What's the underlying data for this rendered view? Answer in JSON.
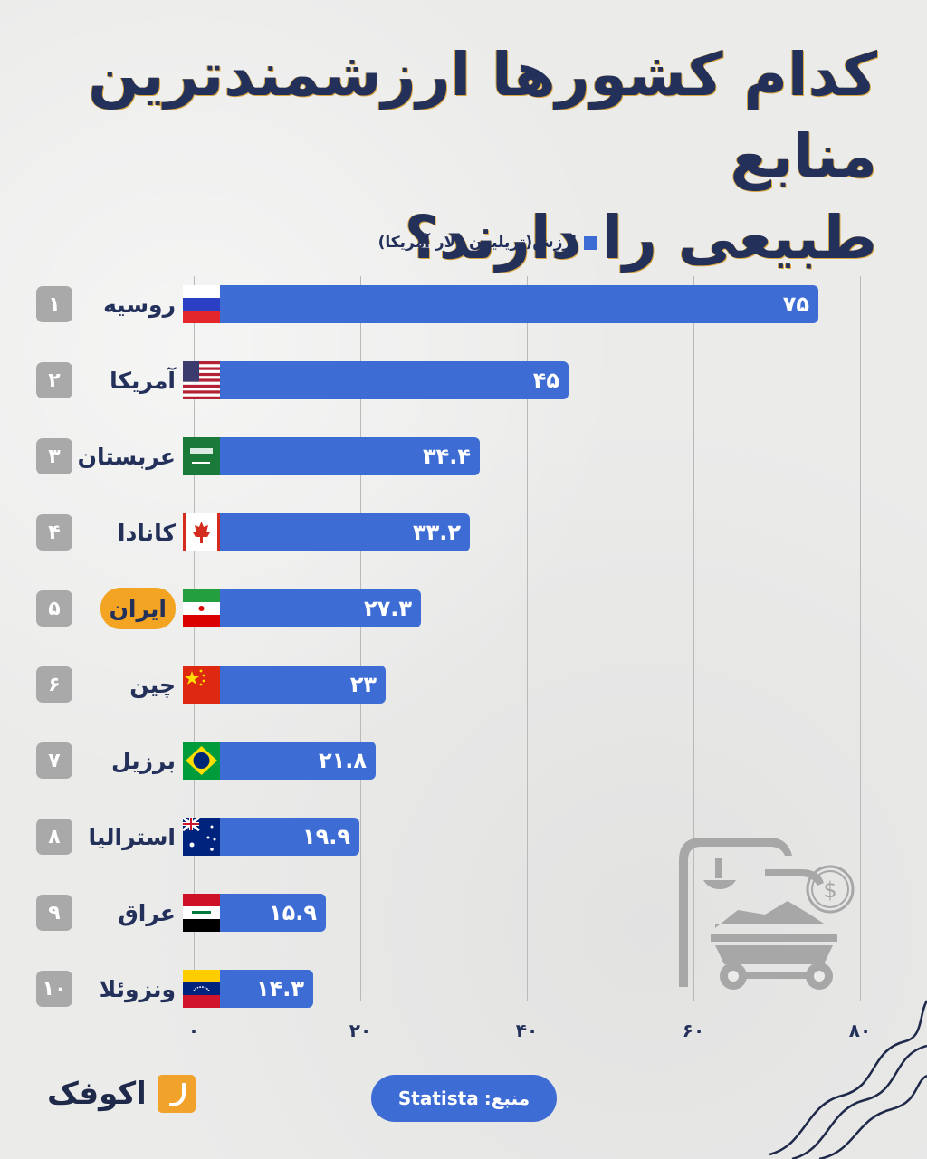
{
  "title": {
    "line1": "کدام کشورها ارزشمندترین منابع",
    "line2": "طبیعی را دارند؟"
  },
  "legend": {
    "label": "ارزش(تریلیون دلار آمریکا)",
    "color": "#3d6cd4"
  },
  "rows": [
    {
      "rank": "۱",
      "country": "روسیه",
      "value_label": "۷۵",
      "flag": "russia-flag"
    },
    {
      "rank": "۲",
      "country": "آمریکا",
      "value_label": "۴۵",
      "flag": "usa-flag"
    },
    {
      "rank": "۳",
      "country": "عربستان",
      "value_label": "۳۴.۴",
      "flag": "saudi-arabia-flag"
    },
    {
      "rank": "۴",
      "country": "کانادا",
      "value_label": "۳۳.۲",
      "flag": "canada-flag"
    },
    {
      "rank": "۵",
      "country": "ایران",
      "value_label": "۲۷.۳",
      "flag": "iran-flag",
      "highlight": true
    },
    {
      "rank": "۶",
      "country": "چین",
      "value_label": "۲۳",
      "flag": "china-flag"
    },
    {
      "rank": "۷",
      "country": "برزیل",
      "value_label": "۲۱.۸",
      "flag": "brazil-flag"
    },
    {
      "rank": "۸",
      "country": "استرالیا",
      "value_label": "۱۹.۹",
      "flag": "australia-flag"
    },
    {
      "rank": "۹",
      "country": "عراق",
      "value_label": "۱۵.۹",
      "flag": "iraq-flag"
    },
    {
      "rank": "۱۰",
      "country": "ونزوئلا",
      "value_label": "۱۴.۳",
      "flag": "venezuela-flag"
    }
  ],
  "axis": {
    "ticks": [
      "۰",
      "۲۰",
      "۴۰",
      "۶۰",
      "۸۰"
    ]
  },
  "source": {
    "label": "منبع:",
    "name": "Statista"
  },
  "logo": {
    "text": "اکوفک"
  },
  "colors": {
    "bar": "#3d6cd4",
    "title": "#23305a",
    "highlight": "#f3a423",
    "rank_badge": "#a9a9a9"
  },
  "chart_data": {
    "type": "bar",
    "orientation": "horizontal",
    "title": "کدام کشورها ارزشمندترین منابع طبیعی را دارند؟",
    "xlabel": "",
    "ylabel": "",
    "legend": [
      "ارزش(تریلیون دلار آمریکا)"
    ],
    "categories": [
      "روسیه",
      "آمریکا",
      "عربستان",
      "کانادا",
      "ایران",
      "چین",
      "برزیل",
      "استرالیا",
      "عراق",
      "ونزوئلا"
    ],
    "categories_en": [
      "Russia",
      "USA",
      "Saudi Arabia",
      "Canada",
      "Iran",
      "China",
      "Brazil",
      "Australia",
      "Iraq",
      "Venezuela"
    ],
    "values": [
      75,
      45,
      34.4,
      33.2,
      27.3,
      23,
      21.8,
      19.9,
      15.9,
      14.3
    ],
    "xlim": [
      0,
      80
    ],
    "xticks": [
      0,
      20,
      40,
      60,
      80
    ],
    "grid": true,
    "source": "Statista",
    "highlighted_category": "ایران"
  }
}
